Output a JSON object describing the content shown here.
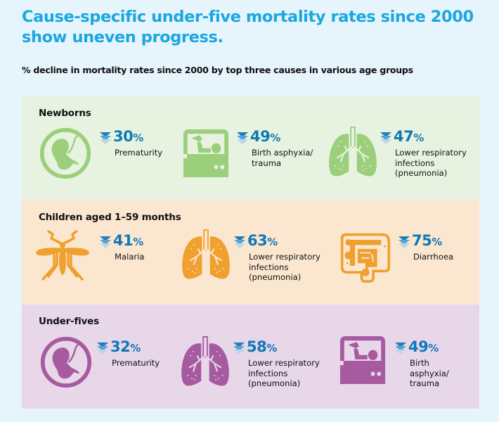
{
  "header": {
    "title": "Cause-specific under-five mortality rates since 2000 show uneven progress.",
    "subtitle": "% decline in mortality rates since 2000 by top three causes in various age groups"
  },
  "colors": {
    "title": "#1aa7e1",
    "percent": "#0f79b7",
    "newborns_icon": "#9bcf7b",
    "children_icon": "#f0a02e",
    "underfives_icon": "#a65ba1"
  },
  "groups": [
    {
      "name": "Newborns",
      "items": [
        {
          "icon": "fetus-icon",
          "value": "30",
          "unit": "%",
          "cause": "Prematurity"
        },
        {
          "icon": "incubator-icon",
          "value": "49",
          "unit": "%",
          "cause": "Birth asphyxia/\ntrauma"
        },
        {
          "icon": "lungs-icon",
          "value": "47",
          "unit": "%",
          "cause": "Lower respiratory\ninfections\n(pneumonia)"
        }
      ]
    },
    {
      "name": "Children aged 1–59 months",
      "items": [
        {
          "icon": "mosquito-icon",
          "value": "41",
          "unit": "%",
          "cause": "Malaria"
        },
        {
          "icon": "lungs-icon",
          "value": "63",
          "unit": "%",
          "cause": "Lower respiratory\ninfections\n(pneumonia)"
        },
        {
          "icon": "intestine-icon",
          "value": "75",
          "unit": "%",
          "cause": "Diarrhoea"
        }
      ]
    },
    {
      "name": "Under-fives",
      "items": [
        {
          "icon": "fetus-icon",
          "value": "32",
          "unit": "%",
          "cause": "Prematurity"
        },
        {
          "icon": "lungs-icon",
          "value": "58",
          "unit": "%",
          "cause": "Lower respiratory\ninfections\n(pneumonia)"
        },
        {
          "icon": "incubator-icon",
          "value": "49",
          "unit": "%",
          "cause": "Birth\nasphyxia/\ntrauma"
        }
      ]
    }
  ]
}
